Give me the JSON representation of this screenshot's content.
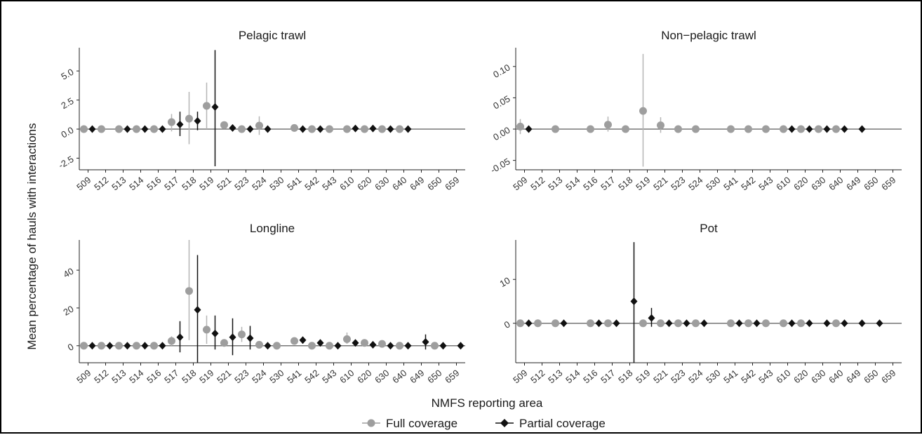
{
  "chart_data": {
    "type": "scatter",
    "ylabel": "Mean percentage of hauls with interactions",
    "xlabel": "NMFS reporting area",
    "legend": {
      "placement": "bottom",
      "entries": [
        {
          "name": "Full coverage",
          "color": "#9e9e9e",
          "marker": "circle"
        },
        {
          "name": "Partial coverage",
          "color": "#111111",
          "marker": "diamond"
        }
      ]
    },
    "categories": [
      "509",
      "512",
      "513",
      "514",
      "516",
      "517",
      "518",
      "519",
      "521",
      "523",
      "524",
      "530",
      "541",
      "542",
      "543",
      "610",
      "620",
      "630",
      "640",
      "649",
      "650",
      "659"
    ],
    "panels": [
      {
        "title": "Pelagic trawl",
        "ylim": [
          -3.5,
          7.0
        ],
        "yticks": [
          -2.5,
          0.0,
          2.5,
          5.0
        ],
        "ytick_labels": [
          "-2.5",
          "0.0",
          "2.5",
          "5.0"
        ],
        "series": [
          {
            "name": "Full coverage",
            "points": [
              {
                "x": "509",
                "y": 0
              },
              {
                "x": "512",
                "y": 0
              },
              {
                "x": "513",
                "y": 0
              },
              {
                "x": "514",
                "y": 0
              },
              {
                "x": "516",
                "y": 0
              },
              {
                "x": "517",
                "y": 0.6,
                "lo": -0.2,
                "hi": 1.3
              },
              {
                "x": "518",
                "y": 0.9,
                "lo": -1.3,
                "hi": 3.2
              },
              {
                "x": "519",
                "y": 2.0,
                "lo": 0.0,
                "hi": 4.0
              },
              {
                "x": "521",
                "y": 0.35,
                "lo": 0.1,
                "hi": 0.6
              },
              {
                "x": "523",
                "y": 0
              },
              {
                "x": "524",
                "y": 0.3,
                "lo": -0.5,
                "hi": 1.1
              },
              {
                "x": "541",
                "y": 0.1
              },
              {
                "x": "542",
                "y": 0
              },
              {
                "x": "543",
                "y": 0
              },
              {
                "x": "610",
                "y": 0
              },
              {
                "x": "620",
                "y": 0
              },
              {
                "x": "630",
                "y": 0
              },
              {
                "x": "640",
                "y": 0
              }
            ]
          },
          {
            "name": "Partial coverage",
            "points": [
              {
                "x": "509",
                "y": 0
              },
              {
                "x": "513",
                "y": 0
              },
              {
                "x": "514",
                "y": 0
              },
              {
                "x": "516",
                "y": 0
              },
              {
                "x": "517",
                "y": 0.4,
                "lo": -0.6,
                "hi": 1.5
              },
              {
                "x": "518",
                "y": 0.7,
                "lo": -0.1,
                "hi": 1.5
              },
              {
                "x": "519",
                "y": 1.9,
                "lo": -3.2,
                "hi": 6.8
              },
              {
                "x": "521",
                "y": 0.1
              },
              {
                "x": "523",
                "y": 0
              },
              {
                "x": "524",
                "y": 0
              },
              {
                "x": "541",
                "y": 0
              },
              {
                "x": "542",
                "y": 0
              },
              {
                "x": "610",
                "y": 0.05
              },
              {
                "x": "620",
                "y": 0.05
              },
              {
                "x": "630",
                "y": 0
              },
              {
                "x": "640",
                "y": 0
              }
            ]
          }
        ]
      },
      {
        "title": "Non−pelagic trawl",
        "ylim": [
          -0.065,
          0.13
        ],
        "yticks": [
          -0.05,
          0.0,
          0.05,
          0.1
        ],
        "ytick_labels": [
          "-0.05",
          "0.00",
          "0.05",
          "0.10"
        ],
        "series": [
          {
            "name": "Full coverage",
            "points": [
              {
                "x": "509",
                "y": 0.004,
                "lo": -0.008,
                "hi": 0.016
              },
              {
                "x": "513",
                "y": 0
              },
              {
                "x": "516",
                "y": 0
              },
              {
                "x": "517",
                "y": 0.007,
                "lo": -0.004,
                "hi": 0.02
              },
              {
                "x": "518",
                "y": 0
              },
              {
                "x": "519",
                "y": 0.029,
                "lo": -0.06,
                "hi": 0.12
              },
              {
                "x": "521",
                "y": 0.006,
                "lo": -0.006,
                "hi": 0.019
              },
              {
                "x": "523",
                "y": 0
              },
              {
                "x": "524",
                "y": 0
              },
              {
                "x": "541",
                "y": 0
              },
              {
                "x": "542",
                "y": 0
              },
              {
                "x": "543",
                "y": 0
              },
              {
                "x": "610",
                "y": 0
              },
              {
                "x": "620",
                "y": 0
              },
              {
                "x": "630",
                "y": 0
              },
              {
                "x": "640",
                "y": 0
              }
            ]
          },
          {
            "name": "Partial coverage",
            "points": [
              {
                "x": "509",
                "y": 0
              },
              {
                "x": "610",
                "y": 0
              },
              {
                "x": "620",
                "y": 0
              },
              {
                "x": "630",
                "y": 0
              },
              {
                "x": "640",
                "y": 0
              },
              {
                "x": "649",
                "y": 0
              }
            ]
          }
        ]
      },
      {
        "title": "Longline",
        "ylim": [
          -9,
          56
        ],
        "yticks": [
          0,
          20,
          40
        ],
        "ytick_labels": [
          "0",
          "20",
          "40"
        ],
        "series": [
          {
            "name": "Full coverage",
            "points": [
              {
                "x": "509",
                "y": 0
              },
              {
                "x": "512",
                "y": 0
              },
              {
                "x": "513",
                "y": 0
              },
              {
                "x": "514",
                "y": 0
              },
              {
                "x": "516",
                "y": 0
              },
              {
                "x": "517",
                "y": 2.5,
                "lo": 0,
                "hi": 5
              },
              {
                "x": "518",
                "y": 29,
                "lo": 3,
                "hi": 56
              },
              {
                "x": "519",
                "y": 8.5,
                "lo": 1,
                "hi": 16
              },
              {
                "x": "521",
                "y": 1.5
              },
              {
                "x": "523",
                "y": 6,
                "lo": 2,
                "hi": 10
              },
              {
                "x": "524",
                "y": 0.5
              },
              {
                "x": "530",
                "y": 0
              },
              {
                "x": "541",
                "y": 2.5
              },
              {
                "x": "542",
                "y": 0
              },
              {
                "x": "543",
                "y": 0
              },
              {
                "x": "610",
                "y": 3.5,
                "lo": 1,
                "hi": 7
              },
              {
                "x": "620",
                "y": 1.5
              },
              {
                "x": "630",
                "y": 1
              },
              {
                "x": "640",
                "y": 0
              },
              {
                "x": "650",
                "y": 0
              }
            ]
          },
          {
            "name": "Partial coverage",
            "points": [
              {
                "x": "509",
                "y": 0
              },
              {
                "x": "512",
                "y": 0
              },
              {
                "x": "513",
                "y": 0
              },
              {
                "x": "514",
                "y": 0
              },
              {
                "x": "516",
                "y": 0
              },
              {
                "x": "517",
                "y": 4.5,
                "lo": -3.5,
                "hi": 13
              },
              {
                "x": "518",
                "y": 19,
                "lo": -9,
                "hi": 48
              },
              {
                "x": "519",
                "y": 6.5,
                "lo": -2,
                "hi": 16
              },
              {
                "x": "521",
                "y": 4.5,
                "lo": -5,
                "hi": 14.5
              },
              {
                "x": "523",
                "y": 4,
                "lo": -2,
                "hi": 10.5
              },
              {
                "x": "524",
                "y": 0
              },
              {
                "x": "541",
                "y": 3
              },
              {
                "x": "542",
                "y": 1.5
              },
              {
                "x": "543",
                "y": 0
              },
              {
                "x": "610",
                "y": 1.5
              },
              {
                "x": "620",
                "y": 0.5
              },
              {
                "x": "630",
                "y": 0
              },
              {
                "x": "640",
                "y": 0
              },
              {
                "x": "649",
                "y": 2,
                "lo": -2,
                "hi": 6
              },
              {
                "x": "650",
                "y": 0
              },
              {
                "x": "659",
                "y": 0
              }
            ]
          }
        ]
      },
      {
        "title": "Pot",
        "ylim": [
          -9,
          19
        ],
        "yticks": [
          0,
          10
        ],
        "ytick_labels": [
          "0",
          "10"
        ],
        "series": [
          {
            "name": "Full coverage",
            "points": [
              {
                "x": "509",
                "y": 0
              },
              {
                "x": "512",
                "y": 0
              },
              {
                "x": "513",
                "y": 0
              },
              {
                "x": "516",
                "y": 0
              },
              {
                "x": "517",
                "y": 0
              },
              {
                "x": "519",
                "y": 0
              },
              {
                "x": "521",
                "y": 0
              },
              {
                "x": "523",
                "y": 0
              },
              {
                "x": "524",
                "y": 0
              },
              {
                "x": "541",
                "y": 0
              },
              {
                "x": "542",
                "y": 0
              },
              {
                "x": "543",
                "y": 0
              },
              {
                "x": "610",
                "y": 0
              },
              {
                "x": "620",
                "y": 0
              },
              {
                "x": "640",
                "y": 0
              }
            ]
          },
          {
            "name": "Partial coverage",
            "points": [
              {
                "x": "509",
                "y": 0
              },
              {
                "x": "513",
                "y": 0
              },
              {
                "x": "516",
                "y": 0
              },
              {
                "x": "517",
                "y": 0
              },
              {
                "x": "518",
                "y": 5,
                "lo": -9,
                "hi": 18.5
              },
              {
                "x": "519",
                "y": 1.2,
                "lo": -0.8,
                "hi": 3.5
              },
              {
                "x": "521",
                "y": 0
              },
              {
                "x": "523",
                "y": 0
              },
              {
                "x": "524",
                "y": 0
              },
              {
                "x": "541",
                "y": 0
              },
              {
                "x": "542",
                "y": 0
              },
              {
                "x": "610",
                "y": 0
              },
              {
                "x": "620",
                "y": 0
              },
              {
                "x": "630",
                "y": 0
              },
              {
                "x": "640",
                "y": 0
              },
              {
                "x": "649",
                "y": 0
              },
              {
                "x": "650",
                "y": 0
              }
            ]
          }
        ]
      }
    ]
  }
}
